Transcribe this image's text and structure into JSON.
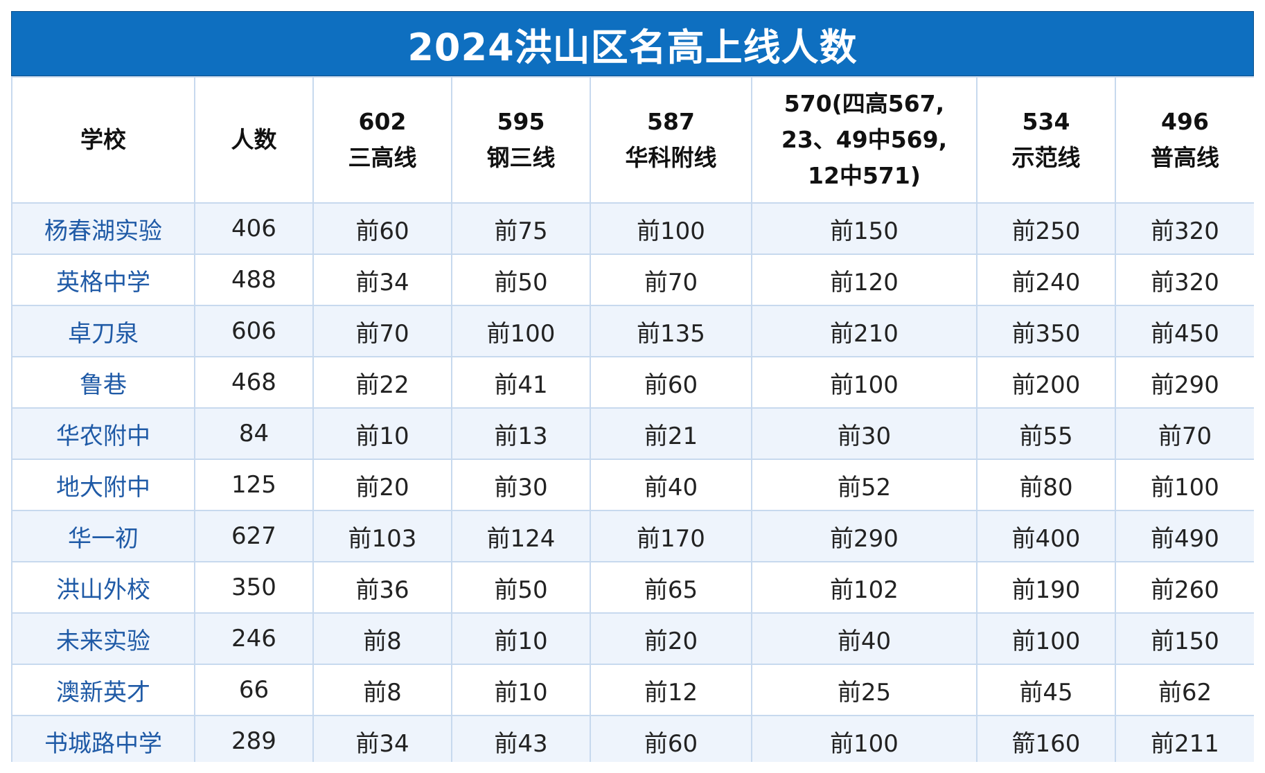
{
  "title": "2024洪山区名高上线人数",
  "columns": [
    {
      "lines": [
        "学校"
      ]
    },
    {
      "lines": [
        "人数"
      ]
    },
    {
      "lines": [
        "602",
        "三高线"
      ]
    },
    {
      "lines": [
        "595",
        "钢三线"
      ]
    },
    {
      "lines": [
        "587",
        "华科附线"
      ]
    },
    {
      "lines": [
        "570(四高567,",
        "23、49中569,",
        "12中571)"
      ]
    },
    {
      "lines": [
        "534",
        "示范线"
      ]
    },
    {
      "lines": [
        "496",
        "普高线"
      ]
    }
  ],
  "rows": [
    [
      "杨春湖实验",
      "406",
      "前60",
      "前75",
      "前100",
      "前150",
      "前250",
      "前320"
    ],
    [
      "英格中学",
      "488",
      "前34",
      "前50",
      "前70",
      "前120",
      "前240",
      "前320"
    ],
    [
      "卓刀泉",
      "606",
      "前70",
      "前100",
      "前135",
      "前210",
      "前350",
      "前450"
    ],
    [
      "鲁巷",
      "468",
      "前22",
      "前41",
      "前60",
      "前100",
      "前200",
      "前290"
    ],
    [
      "华农附中",
      "84",
      "前10",
      "前13",
      "前21",
      "前30",
      "前55",
      "前70"
    ],
    [
      "地大附中",
      "125",
      "前20",
      "前30",
      "前40",
      "前52",
      "前80",
      "前100"
    ],
    [
      "华一初",
      "627",
      "前103",
      "前124",
      "前170",
      "前290",
      "前400",
      "前490"
    ],
    [
      "洪山外校",
      "350",
      "前36",
      "前50",
      "前65",
      "前102",
      "前190",
      "前260"
    ],
    [
      "未来实验",
      "246",
      "前8",
      "前10",
      "前20",
      "前40",
      "前100",
      "前150"
    ],
    [
      "澳新英才",
      "66",
      "前8",
      "前10",
      "前12",
      "前25",
      "前45",
      "前62"
    ],
    [
      "书城路中学",
      "289",
      "前34",
      "前43",
      "前60",
      "前100",
      "箭160",
      "前211"
    ]
  ],
  "colors": {
    "title_bg": "#0E6FC0",
    "school_text": "#1f5aa6",
    "row_alt": "#eef4fc",
    "border": "#c7d9ee"
  }
}
